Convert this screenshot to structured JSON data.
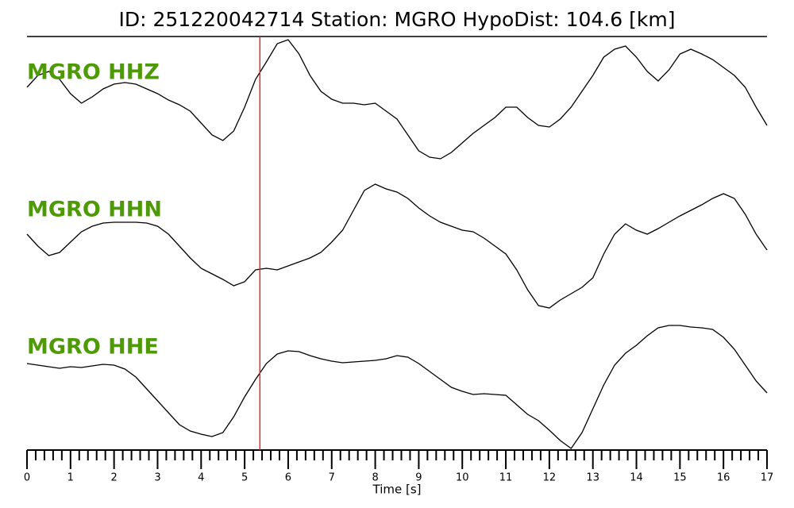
{
  "chart_data": {
    "type": "line",
    "title": "ID: 251220042714   Station: MGRO   HypoDist:   104.6 [km]",
    "xlabel": "Time [s]",
    "xlim": [
      0,
      17
    ],
    "xticks": [
      0,
      1,
      2,
      3,
      4,
      5,
      6,
      7,
      8,
      9,
      10,
      11,
      12,
      13,
      14,
      15,
      16,
      17
    ],
    "xminorticks": [
      0.2,
      0.4,
      0.6,
      0.8,
      1.2,
      1.4,
      1.6,
      1.8,
      2.2,
      2.4,
      2.6,
      2.8,
      3.2,
      3.4,
      3.6,
      3.8,
      4.2,
      4.4,
      4.6,
      4.8,
      5.2,
      5.4,
      5.6,
      5.8,
      6.2,
      6.4,
      6.6,
      6.8,
      7.2,
      7.4,
      7.6,
      7.8,
      8.2,
      8.4,
      8.6,
      8.8,
      9.2,
      9.4,
      9.6,
      9.8,
      10.2,
      10.4,
      10.6,
      10.8,
      11.2,
      11.4,
      11.6,
      11.8,
      12.2,
      12.4,
      12.6,
      12.8,
      13.2,
      13.4,
      13.6,
      13.8,
      14.2,
      14.4,
      14.6,
      14.8,
      15.2,
      15.4,
      15.6,
      15.8,
      16.2,
      16.4,
      16.6,
      16.8
    ],
    "ylim": [
      -90,
      90
    ],
    "label_color": "#4e9a06",
    "marker_x": 5.35,
    "marker_color": "#e8262a",
    "x": [
      0,
      0.25,
      0.5,
      0.75,
      1,
      1.25,
      1.5,
      1.75,
      2,
      2.25,
      2.5,
      2.75,
      3,
      3.25,
      3.5,
      3.75,
      4,
      4.25,
      4.5,
      4.75,
      5,
      5.25,
      5.5,
      5.75,
      6,
      6.25,
      6.5,
      6.75,
      7,
      7.25,
      7.5,
      7.75,
      8,
      8.25,
      8.5,
      8.75,
      9,
      9.25,
      9.5,
      9.75,
      10,
      10.25,
      10.5,
      10.75,
      11,
      11.25,
      11.5,
      11.75,
      12,
      12.25,
      12.5,
      12.75,
      13,
      13.25,
      13.5,
      13.75,
      14,
      14.25,
      14.5,
      14.75,
      15,
      15.25,
      15.5,
      15.75,
      16,
      16.25,
      16.5,
      16.75,
      17
    ],
    "series": [
      {
        "name": "MGRO HHZ",
        "color": "#000000",
        "values": [
          15,
          30,
          35,
          25,
          7,
          -5,
          3,
          13,
          19,
          21,
          19,
          13,
          7,
          -1,
          -7,
          -15,
          -30,
          -45,
          -52,
          -40,
          -10,
          25,
          47,
          70,
          75,
          57,
          30,
          10,
          0,
          -5,
          -5,
          -7,
          -5,
          -15,
          -25,
          -45,
          -65,
          -73,
          -75,
          -67,
          -55,
          -43,
          -33,
          -23,
          -10,
          -10,
          -23,
          -33,
          -35,
          -25,
          -10,
          10,
          30,
          53,
          63,
          67,
          53,
          35,
          23,
          37,
          57,
          63,
          57,
          50,
          40,
          30,
          15,
          -10,
          -33
        ]
      },
      {
        "name": "MGRO HHN",
        "color": "#000000",
        "values": [
          5,
          -10,
          -22,
          -18,
          -5,
          8,
          15,
          19,
          20,
          20,
          20,
          19,
          15,
          5,
          -10,
          -25,
          -38,
          -45,
          -52,
          -60,
          -55,
          -40,
          -38,
          -40,
          -35,
          -30,
          -25,
          -18,
          -5,
          10,
          35,
          60,
          68,
          62,
          58,
          50,
          38,
          28,
          20,
          15,
          10,
          8,
          0,
          -10,
          -20,
          -40,
          -65,
          -85,
          -88,
          -78,
          -70,
          -62,
          -50,
          -20,
          5,
          18,
          10,
          5,
          12,
          20,
          28,
          35,
          42,
          50,
          56,
          50,
          30,
          5,
          -15
        ]
      },
      {
        "name": "MGRO HHE",
        "color": "#000000",
        "values": [
          17,
          15,
          13,
          11,
          13,
          12,
          14,
          16,
          15,
          10,
          0,
          -15,
          -30,
          -45,
          -60,
          -68,
          -72,
          -75,
          -70,
          -50,
          -25,
          -3,
          17,
          29,
          33,
          32,
          27,
          23,
          20,
          18,
          19,
          20,
          21,
          23,
          27,
          25,
          17,
          7,
          -3,
          -13,
          -18,
          -22,
          -21,
          -22,
          -23,
          -35,
          -47,
          -55,
          -67,
          -80,
          -90,
          -70,
          -40,
          -10,
          15,
          30,
          40,
          52,
          62,
          65,
          65,
          63,
          62,
          60,
          50,
          35,
          15,
          -5,
          -20
        ]
      }
    ]
  }
}
